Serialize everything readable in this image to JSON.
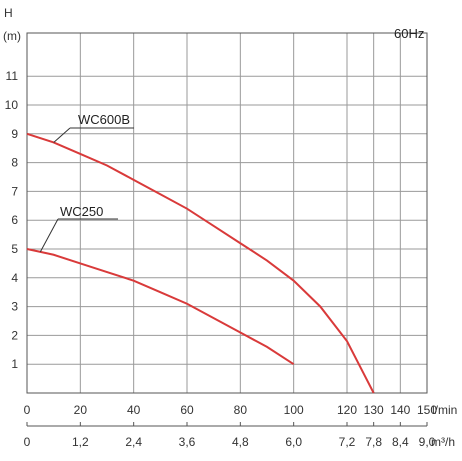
{
  "chart_data": {
    "type": "line",
    "annotation": "60Hz",
    "ylabel": "H",
    "yunit": "(m)",
    "xlabel": "l/min",
    "x2label": "m³/h",
    "xlim": [
      0,
      150
    ],
    "ylim": [
      0,
      12.5
    ],
    "x_ticks": [
      "0",
      "20",
      "40",
      "60",
      "80",
      "100",
      "120",
      "130",
      "140",
      "150"
    ],
    "x_tick_values": [
      0,
      20,
      40,
      60,
      80,
      100,
      120,
      130,
      140,
      150
    ],
    "x2_ticks": [
      "0",
      "1,2",
      "2,4",
      "3,6",
      "4,8",
      "6,0",
      "7,2",
      "7,8",
      "8,4",
      "9,0"
    ],
    "y_ticks": [
      "1",
      "2",
      "3",
      "4",
      "5",
      "6",
      "7",
      "8",
      "9",
      "10",
      "11"
    ],
    "y_tick_values": [
      1,
      2,
      3,
      4,
      5,
      6,
      7,
      8,
      9,
      10,
      11
    ],
    "grid": true,
    "series": [
      {
        "name": "WC600B",
        "color": "#d93a3a",
        "x": [
          0,
          10,
          20,
          30,
          40,
          50,
          60,
          70,
          80,
          90,
          100,
          110,
          120,
          130
        ],
        "y": [
          9.0,
          8.7,
          8.3,
          7.9,
          7.4,
          6.9,
          6.4,
          5.8,
          5.2,
          4.6,
          3.9,
          3.0,
          1.8,
          0.0
        ]
      },
      {
        "name": "WC250",
        "color": "#d93a3a",
        "x": [
          0,
          10,
          20,
          30,
          40,
          50,
          60,
          70,
          80,
          90,
          100
        ],
        "y": [
          5.0,
          4.8,
          4.5,
          4.2,
          3.9,
          3.5,
          3.1,
          2.6,
          2.1,
          1.6,
          1.0
        ]
      }
    ]
  }
}
